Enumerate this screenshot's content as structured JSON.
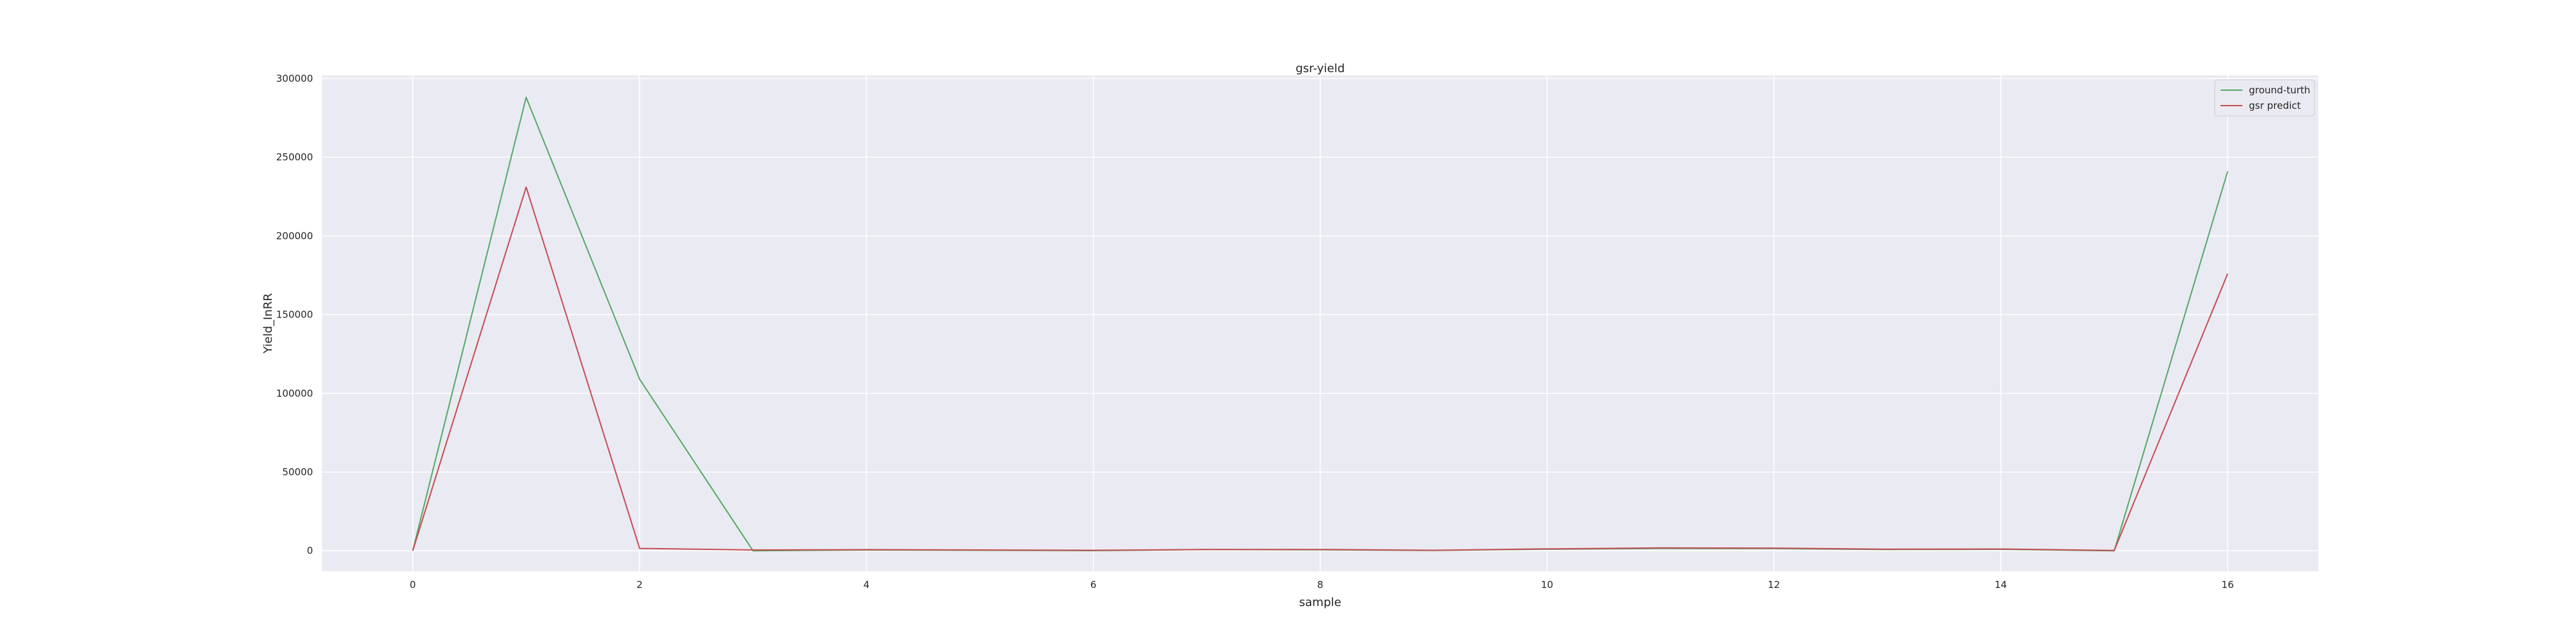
{
  "chart_data": {
    "type": "line",
    "title": "gsr-yield",
    "xlabel": "sample",
    "ylabel": "Yield_InRR",
    "x": [
      0,
      1,
      2,
      3,
      4,
      5,
      6,
      7,
      8,
      9,
      10,
      11,
      12,
      13,
      14,
      15,
      16
    ],
    "xlim": [
      -0.8,
      16.8
    ],
    "ylim": [
      -13000,
      302000
    ],
    "xticks": [
      0,
      2,
      4,
      6,
      8,
      10,
      12,
      14,
      16
    ],
    "xtick_labels": [
      "0",
      "2",
      "4",
      "6",
      "8",
      "10",
      "12",
      "14",
      "16"
    ],
    "yticks": [
      0,
      50000,
      100000,
      150000,
      200000,
      250000,
      300000
    ],
    "ytick_labels": [
      "0",
      "50000",
      "100000",
      "150000",
      "200000",
      "250000",
      "300000"
    ],
    "grid": true,
    "legend_position": "top-right",
    "background": "#eaeaf2",
    "series": [
      {
        "name": "ground-turth",
        "color": "#55a868",
        "values": [
          0,
          288000,
          109000,
          0,
          500,
          300,
          100,
          800,
          600,
          200,
          1000,
          1500,
          1400,
          800,
          900,
          0,
          241000
        ]
      },
      {
        "name": "gsr predict",
        "color": "#c44e52",
        "values": [
          0,
          231000,
          1500,
          500,
          700,
          500,
          300,
          800,
          800,
          300,
          1200,
          1800,
          1700,
          1000,
          1100,
          200,
          176000
        ]
      }
    ]
  }
}
